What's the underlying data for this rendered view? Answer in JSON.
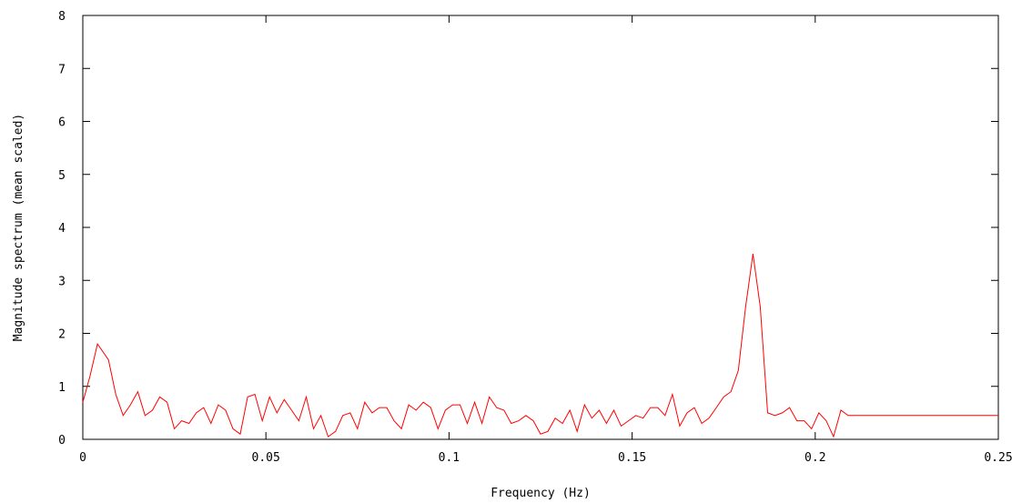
{
  "chart_data": {
    "type": "line",
    "title": "",
    "xlabel": "Frequency (Hz)",
    "ylabel": "Magnitude spectrum (mean scaled)",
    "xlim": [
      0,
      0.25
    ],
    "ylim": [
      0,
      8
    ],
    "x_ticks": [
      0,
      0.05,
      0.1,
      0.15,
      0.2,
      0.25
    ],
    "x_tick_labels": [
      "0",
      "0.05",
      "0.1",
      "0.15",
      "0.2",
      "0.25"
    ],
    "y_ticks": [
      0,
      1,
      2,
      3,
      4,
      5,
      6,
      7,
      8
    ],
    "y_tick_labels": [
      "0",
      "1",
      "2",
      "3",
      "4",
      "5",
      "6",
      "7",
      "8"
    ],
    "grid": false,
    "legend": "none",
    "series": [
      {
        "color": "#ff0000",
        "x": [
          0.0,
          0.002,
          0.004,
          0.007,
          0.009,
          0.011,
          0.013,
          0.015,
          0.017,
          0.019,
          0.021,
          0.023,
          0.025,
          0.027,
          0.029,
          0.031,
          0.033,
          0.035,
          0.037,
          0.039,
          0.041,
          0.043,
          0.045,
          0.047,
          0.049,
          0.051,
          0.053,
          0.055,
          0.057,
          0.059,
          0.061,
          0.063,
          0.065,
          0.067,
          0.069,
          0.071,
          0.073,
          0.075,
          0.077,
          0.079,
          0.081,
          0.083,
          0.085,
          0.087,
          0.089,
          0.091,
          0.093,
          0.095,
          0.097,
          0.099,
          0.101,
          0.103,
          0.105,
          0.107,
          0.109,
          0.111,
          0.113,
          0.115,
          0.117,
          0.119,
          0.121,
          0.123,
          0.125,
          0.127,
          0.129,
          0.131,
          0.133,
          0.135,
          0.137,
          0.139,
          0.141,
          0.143,
          0.145,
          0.147,
          0.149,
          0.151,
          0.153,
          0.155,
          0.157,
          0.159,
          0.161,
          0.163,
          0.165,
          0.167,
          0.169,
          0.171,
          0.173,
          0.175,
          0.177,
          0.179,
          0.181,
          0.183,
          0.185,
          0.187,
          0.189,
          0.191,
          0.193,
          0.195,
          0.197,
          0.199,
          0.201,
          0.203,
          0.205,
          0.207,
          0.209,
          0.211,
          0.213,
          0.215,
          0.217,
          0.219,
          0.221,
          0.223,
          0.224,
          0.226,
          0.228,
          0.23,
          0.232,
          0.234,
          0.236,
          0.238,
          0.24,
          0.242,
          0.244,
          0.246,
          0.248,
          0.25
        ],
        "y": [
          0.7,
          1.2,
          1.8,
          1.5,
          0.85,
          0.45,
          0.65,
          0.9,
          0.45,
          0.55,
          0.8,
          0.7,
          0.2,
          0.35,
          0.3,
          0.5,
          0.6,
          0.3,
          0.65,
          0.55,
          0.2,
          0.1,
          0.8,
          0.85,
          0.35,
          0.8,
          0.5,
          0.75,
          0.55,
          0.35,
          0.8,
          0.2,
          0.45,
          0.05,
          0.15,
          0.45,
          0.5,
          0.2,
          0.7,
          0.5,
          0.6,
          0.6,
          0.35,
          0.2,
          0.65,
          0.55,
          0.7,
          0.6,
          0.2,
          0.55,
          0.65,
          0.65,
          0.3,
          0.7,
          0.3,
          0.8,
          0.6,
          0.55,
          0.3,
          0.35,
          0.45,
          0.35,
          0.1,
          0.15,
          0.4,
          0.3,
          0.55,
          0.15,
          0.65,
          0.4,
          0.55,
          0.3,
          0.55,
          0.25,
          0.35,
          0.45,
          0.4,
          0.6,
          0.6,
          0.45,
          0.85,
          0.25,
          0.5,
          0.6,
          0.3,
          0.4,
          0.6,
          0.8,
          0.9,
          1.3,
          2.5,
          3.5,
          2.5,
          0.5,
          0.45,
          0.5,
          0.6,
          0.35,
          0.35,
          0.2,
          0.5,
          0.35,
          0.05,
          0.55,
          0.45,
          0.45,
          0.45,
          0.45,
          0.45,
          0.45,
          0.45,
          0.45,
          0.45,
          0.45,
          0.45,
          0.45,
          0.45,
          0.45,
          0.45,
          0.45,
          0.45,
          0.45,
          0.45,
          0.45,
          0.45,
          0.45
        ]
      }
    ]
  }
}
